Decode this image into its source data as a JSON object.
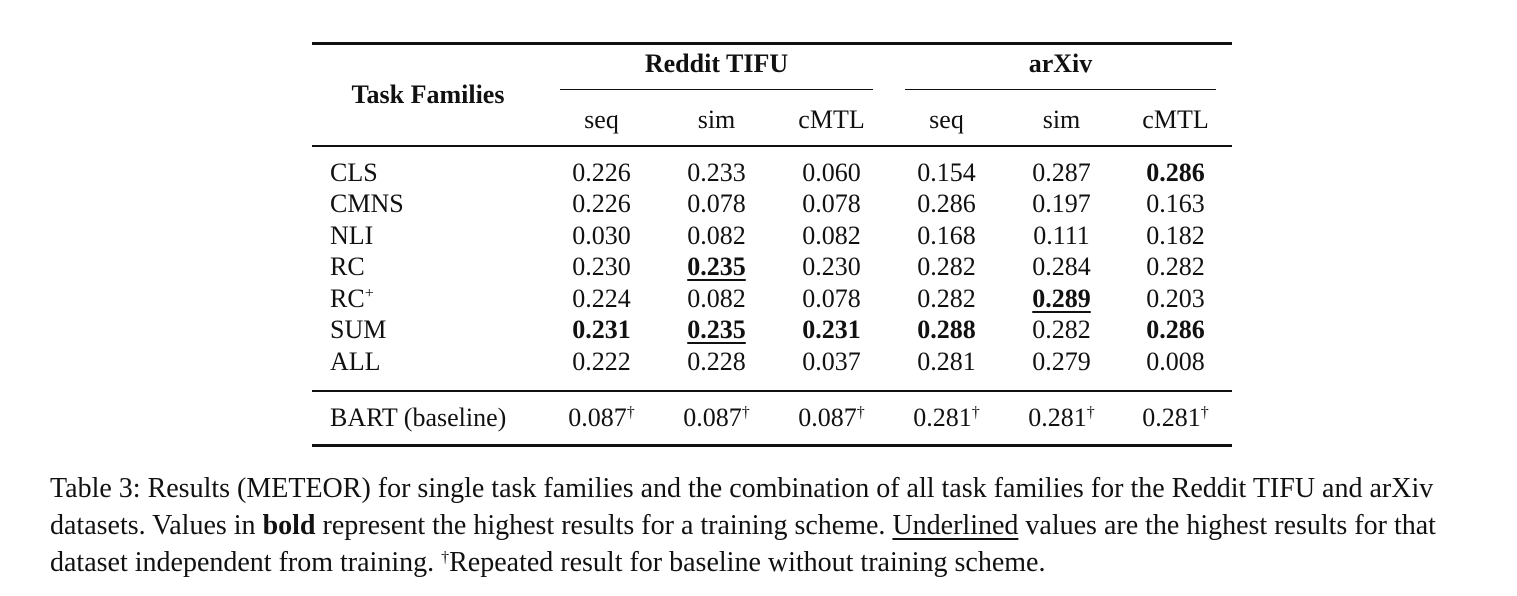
{
  "table": {
    "row_header": "Task Families",
    "groups": [
      "Reddit TIFU",
      "arXiv"
    ],
    "subcolumns": [
      "seq",
      "sim",
      "cMTL",
      "seq",
      "sim",
      "cMTL"
    ],
    "rows": [
      {
        "label": "CLS",
        "values": [
          "0.226",
          "0.233",
          "0.060",
          "0.154",
          "0.287",
          "0.286"
        ],
        "bold": [
          false,
          false,
          false,
          false,
          false,
          true
        ],
        "underline": [
          false,
          false,
          false,
          false,
          false,
          false
        ]
      },
      {
        "label": "CMNS",
        "values": [
          "0.226",
          "0.078",
          "0.078",
          "0.286",
          "0.197",
          "0.163"
        ],
        "bold": [
          false,
          false,
          false,
          false,
          false,
          false
        ],
        "underline": [
          false,
          false,
          false,
          false,
          false,
          false
        ]
      },
      {
        "label": "NLI",
        "values": [
          "0.030",
          "0.082",
          "0.082",
          "0.168",
          "0.111",
          "0.182"
        ],
        "bold": [
          false,
          false,
          false,
          false,
          false,
          false
        ],
        "underline": [
          false,
          false,
          false,
          false,
          false,
          false
        ]
      },
      {
        "label": "RC",
        "values": [
          "0.230",
          "0.235",
          "0.230",
          "0.282",
          "0.284",
          "0.282"
        ],
        "bold": [
          false,
          true,
          false,
          false,
          false,
          false
        ],
        "underline": [
          false,
          true,
          false,
          false,
          false,
          false
        ]
      },
      {
        "label": "RC",
        "label_sup": "+",
        "values": [
          "0.224",
          "0.082",
          "0.078",
          "0.282",
          "0.289",
          "0.203"
        ],
        "bold": [
          false,
          false,
          false,
          false,
          true,
          false
        ],
        "underline": [
          false,
          false,
          false,
          false,
          true,
          false
        ]
      },
      {
        "label": "SUM",
        "values": [
          "0.231",
          "0.235",
          "0.231",
          "0.288",
          "0.282",
          "0.286"
        ],
        "bold": [
          true,
          true,
          true,
          true,
          false,
          true
        ],
        "underline": [
          false,
          true,
          false,
          false,
          false,
          false
        ]
      },
      {
        "label": "ALL",
        "values": [
          "0.222",
          "0.228",
          "0.037",
          "0.281",
          "0.279",
          "0.008"
        ],
        "bold": [
          false,
          false,
          false,
          false,
          false,
          false
        ],
        "underline": [
          false,
          false,
          false,
          false,
          false,
          false
        ]
      }
    ],
    "baseline": {
      "label": "BART (baseline)",
      "values": [
        "0.087",
        "0.087",
        "0.087",
        "0.281",
        "0.281",
        "0.281"
      ],
      "mark": "†"
    }
  },
  "caption": {
    "part1": "Table 3: Results (METEOR) for single task families and the combination of all task families for the Reddit TIFU and arXiv datasets. Values in ",
    "bold_word": "bold",
    "part2": " represent the highest results for a training scheme. ",
    "underline_word": "Underlined",
    "part3": " values are the highest results for that dataset independent from training. ",
    "dagger": "†",
    "part4": "Repeated result for baseline without training scheme."
  }
}
